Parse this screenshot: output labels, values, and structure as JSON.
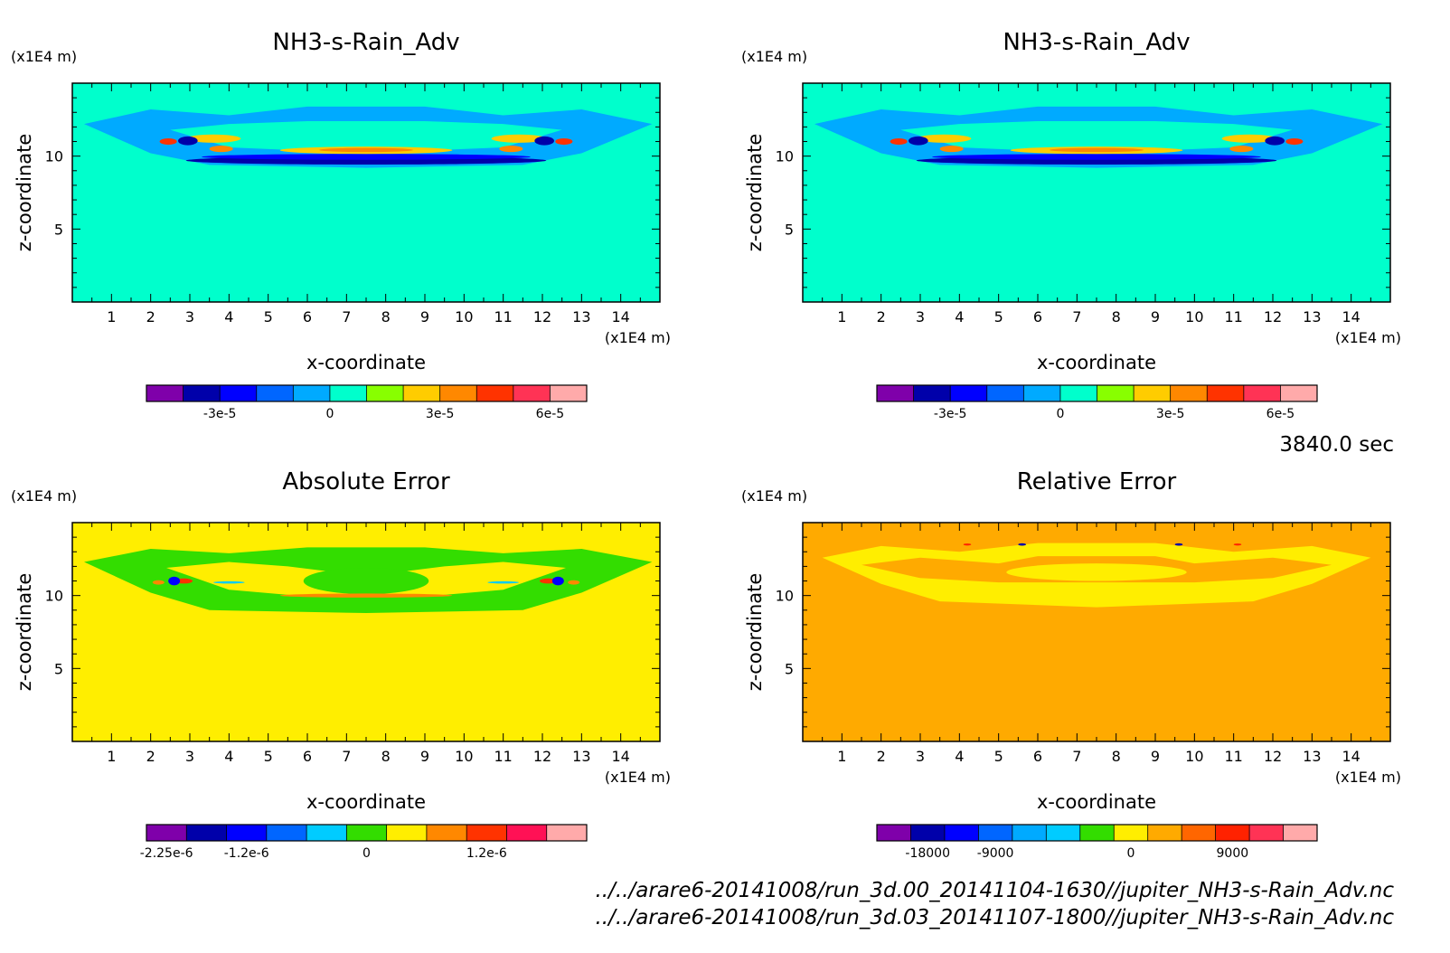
{
  "time_label": "3840.0 sec",
  "footer": {
    "file1": "../../arare6-20141008/run_3d.00_20141104-1630//jupiter_NH3-s-Rain_Adv.nc",
    "file2": "../../arare6-20141008/run_3d.03_20141107-1800//jupiter_NH3-s-Rain_Adv.nc"
  },
  "chart_data": [
    {
      "type": "heatmap",
      "title": "NH3-s-Rain_Adv",
      "xlabel": "x-coordinate",
      "ylabel": "z-coordinate",
      "xunit": "(x1E4 m)",
      "yunit": "(x1E4 m)",
      "xlim": [
        0,
        15
      ],
      "ylim": [
        0,
        15
      ],
      "xticks": [
        "1",
        "2",
        "3",
        "4",
        "5",
        "6",
        "7",
        "8",
        "9",
        "10",
        "11",
        "12",
        "13",
        "14"
      ],
      "yticks": [
        "5",
        "10"
      ],
      "background_color": "#00ffcc",
      "colorbar": {
        "colors": [
          "#7f00aa",
          "#0000aa",
          "#0000ff",
          "#0066ff",
          "#00aaff",
          "#00ffcc",
          "#88ff00",
          "#ffcc00",
          "#ff8800",
          "#ff3300",
          "#ff3355",
          "#ffaaaa"
        ],
        "labels": [
          "-3e-5",
          "0",
          "3e-5",
          "6e-5"
        ],
        "label_positions": [
          1.5,
          4.5,
          7.5,
          10.5
        ]
      },
      "features": "near-zero everywhere; bands of positive/negative values at z ~ 9-13 (x1E4 m), strongest near x ~ 2.5-3.5 and 11.5-12.5"
    },
    {
      "type": "heatmap",
      "title": "NH3-s-Rain_Adv",
      "xlabel": "x-coordinate",
      "ylabel": "z-coordinate",
      "xunit": "(x1E4 m)",
      "yunit": "(x1E4 m)",
      "xlim": [
        0,
        15
      ],
      "ylim": [
        0,
        15
      ],
      "xticks": [
        "1",
        "2",
        "3",
        "4",
        "5",
        "6",
        "7",
        "8",
        "9",
        "10",
        "11",
        "12",
        "13",
        "14"
      ],
      "yticks": [
        "5",
        "10"
      ],
      "background_color": "#00ffcc",
      "colorbar": {
        "colors": [
          "#7f00aa",
          "#0000aa",
          "#0000ff",
          "#0066ff",
          "#00aaff",
          "#00ffcc",
          "#88ff00",
          "#ffcc00",
          "#ff8800",
          "#ff3300",
          "#ff3355",
          "#ffaaaa"
        ],
        "labels": [
          "-3e-5",
          "0",
          "3e-5",
          "6e-5"
        ],
        "label_positions": [
          1.5,
          4.5,
          7.5,
          10.5
        ]
      }
    },
    {
      "type": "heatmap",
      "title": "Absolute Error",
      "xlabel": "x-coordinate",
      "ylabel": "z-coordinate",
      "xunit": "(x1E4 m)",
      "yunit": "(x1E4 m)",
      "xlim": [
        0,
        15
      ],
      "ylim": [
        0,
        15
      ],
      "xticks": [
        "1",
        "2",
        "3",
        "4",
        "5",
        "6",
        "7",
        "8",
        "9",
        "10",
        "11",
        "12",
        "13",
        "14"
      ],
      "yticks": [
        "5",
        "10"
      ],
      "background_color": "#ffee00",
      "colorbar": {
        "colors": [
          "#7f00aa",
          "#0000aa",
          "#0000ff",
          "#0066ff",
          "#00ccff",
          "#33dd00",
          "#ffee00",
          "#ff8800",
          "#ff3300",
          "#ff1155",
          "#ffaaaa"
        ],
        "labels": [
          "-2.25e-6",
          "-1.2e-6",
          "0",
          "1.2e-6"
        ],
        "label_positions": [
          0,
          2,
          5,
          8
        ]
      }
    },
    {
      "type": "heatmap",
      "title": "Relative Error",
      "xlabel": "x-coordinate",
      "ylabel": "z-coordinate",
      "xunit": "(x1E4 m)",
      "yunit": "(x1E4 m)",
      "xlim": [
        0,
        15
      ],
      "ylim": [
        0,
        15
      ],
      "xticks": [
        "1",
        "2",
        "3",
        "4",
        "5",
        "6",
        "7",
        "8",
        "9",
        "10",
        "11",
        "12",
        "13",
        "14"
      ],
      "yticks": [
        "5",
        "10"
      ],
      "background_color": "#ffaa00",
      "colorbar": {
        "colors": [
          "#7f00aa",
          "#0000aa",
          "#0000ff",
          "#0066ff",
          "#00aaff",
          "#00ccff",
          "#33dd00",
          "#ffee00",
          "#ffaa00",
          "#ff6600",
          "#ff2200",
          "#ff3355",
          "#ffaaaa"
        ],
        "labels": [
          "-18000",
          "-9000",
          "0",
          "9000"
        ],
        "label_positions": [
          1,
          3,
          7,
          10
        ]
      }
    }
  ]
}
